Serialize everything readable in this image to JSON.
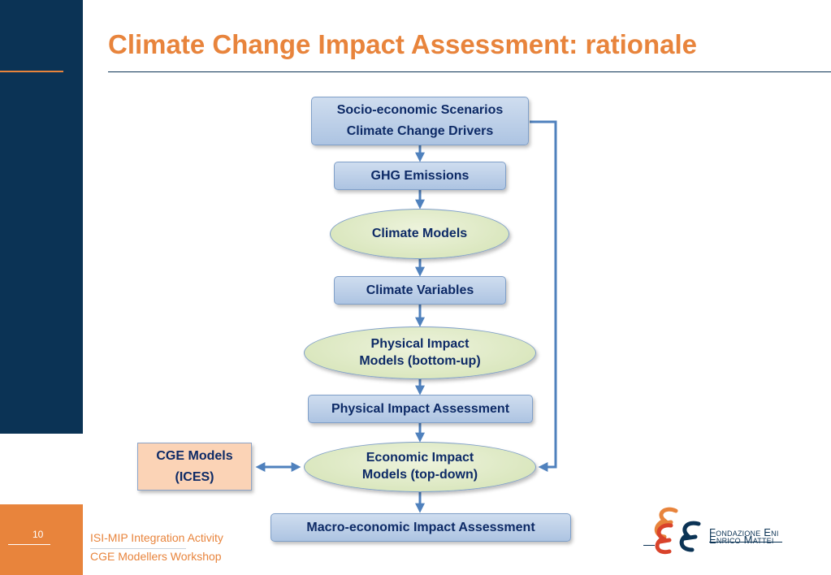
{
  "slide": {
    "title": "Climate Change Impact Assessment: rationale",
    "page_number": "10"
  },
  "diagram": {
    "scenarios": [
      "Socio-economic Scenarios",
      "Climate Change Drivers"
    ],
    "ghg": "GHG Emissions",
    "climate_models": "Climate Models",
    "climate_variables": "Climate Variables",
    "physical_models": [
      "Physical Impact",
      "Models (bottom-up)"
    ],
    "physical_assessment": "Physical Impact Assessment",
    "economic_models": [
      "Economic Impact",
      "Models (top-down)"
    ],
    "cge_models": [
      "CGE Models",
      "(ICES)"
    ],
    "macro_assessment": "Macro-economic Impact Assessment"
  },
  "footer": {
    "line1": "ISI-MIP Integration Activity",
    "line2": "CGE Modellers Workshop"
  },
  "logo": {
    "line1": "Fondazione Eni",
    "line2": "Enrico Mattei"
  },
  "colors": {
    "navy": "#0b3355",
    "orange": "#e8843c",
    "box_blue": "#b9cde6",
    "oval_green": "#dde8c4",
    "cge_peach": "#fbd3b6",
    "arrow_blue": "#4f81bd"
  }
}
